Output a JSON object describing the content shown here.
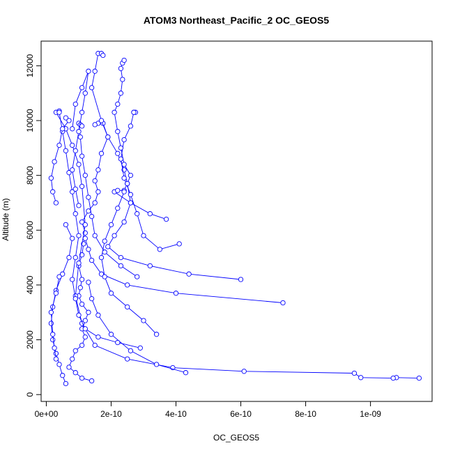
{
  "chart_data": {
    "type": "line",
    "title": "ATOM3 Northeast_Pacific_2 OC_GEOS5",
    "xlabel": "OC_GEOS5",
    "ylabel": "Altitude (m)",
    "xlim": [
      -1.6e-11,
      1.19e-09
    ],
    "ylim": [
      -250,
      12900
    ],
    "x_ticks": [
      0,
      2e-10,
      4e-10,
      6e-10,
      8e-10,
      1e-09
    ],
    "x_tick_labels": [
      "0e+00",
      "2e-10",
      "4e-10",
      "6e-10",
      "8e-10",
      "1e-09"
    ],
    "y_ticks": [
      0,
      2000,
      4000,
      6000,
      8000,
      10000,
      12000
    ],
    "y_tick_labels": [
      "0",
      "2000",
      "4000",
      "6000",
      "8000",
      "10000",
      "12000"
    ],
    "grid": false,
    "legend": "none",
    "colors": {
      "series": "#0000ff",
      "axes": "#000000",
      "background": "#ffffff"
    },
    "series": [
      {
        "marker": "open-circle",
        "line": "solid",
        "points": [
          {
            "x": 1.4e-10,
            "y": 500
          },
          {
            "x": 1.1e-10,
            "y": 600
          },
          {
            "x": 9e-11,
            "y": 800
          },
          {
            "x": 7e-11,
            "y": 1000
          },
          {
            "x": 8e-11,
            "y": 1300
          },
          {
            "x": 9e-11,
            "y": 1600
          },
          {
            "x": 1.1e-10,
            "y": 1800
          },
          {
            "x": 1.2e-10,
            "y": 2100
          },
          {
            "x": 1.1e-10,
            "y": 2400
          },
          {
            "x": 1.2e-10,
            "y": 2700
          },
          {
            "x": 1.3e-10,
            "y": 3000
          },
          {
            "x": 1.1e-10,
            "y": 3300
          },
          {
            "x": 1e-10,
            "y": 3600
          },
          {
            "x": 1.05e-10,
            "y": 3900
          },
          {
            "x": 1.1e-10,
            "y": 4200
          },
          {
            "x": 1e-10,
            "y": 4700
          },
          {
            "x": 1.1e-10,
            "y": 5100
          },
          {
            "x": 1.15e-10,
            "y": 5500
          },
          {
            "x": 1.2e-10,
            "y": 5900
          },
          {
            "x": 1.1e-10,
            "y": 6300
          },
          {
            "x": 1.3e-10,
            "y": 6700
          },
          {
            "x": 1.5e-10,
            "y": 7000
          },
          {
            "x": 1.6e-10,
            "y": 7400
          },
          {
            "x": 1.5e-10,
            "y": 7800
          },
          {
            "x": 1.6e-10,
            "y": 8200
          },
          {
            "x": 1.7e-10,
            "y": 8800
          },
          {
            "x": 1.9e-10,
            "y": 9400
          },
          {
            "x": 1.75e-10,
            "y": 9900
          },
          {
            "x": 1.6e-10,
            "y": 9900
          },
          {
            "x": 1.5e-10,
            "y": 9850
          }
        ]
      },
      {
        "marker": "open-circle",
        "line": "solid",
        "points": [
          {
            "x": 1.15e-09,
            "y": 600
          },
          {
            "x": 1.08e-09,
            "y": 620
          },
          {
            "x": 1.07e-09,
            "y": 600
          },
          {
            "x": 9.7e-10,
            "y": 620
          },
          {
            "x": 9.5e-10,
            "y": 780
          },
          {
            "x": 6.1e-10,
            "y": 850
          },
          {
            "x": 3.9e-10,
            "y": 980
          },
          {
            "x": 2.5e-10,
            "y": 1300
          },
          {
            "x": 1.5e-10,
            "y": 1800
          },
          {
            "x": 1.1e-10,
            "y": 2600
          },
          {
            "x": 9e-11,
            "y": 3600
          },
          {
            "x": 1e-10,
            "y": 4800
          },
          {
            "x": 1.2e-10,
            "y": 6200
          },
          {
            "x": 1.1e-10,
            "y": 7600
          },
          {
            "x": 1e-10,
            "y": 8400
          },
          {
            "x": 8e-11,
            "y": 9100
          },
          {
            "x": 6e-11,
            "y": 9700
          },
          {
            "x": 3e-11,
            "y": 10300
          },
          {
            "x": 4e-11,
            "y": 10350
          }
        ]
      },
      {
        "marker": "open-circle",
        "line": "solid",
        "points": [
          {
            "x": 7.3e-10,
            "y": 3350
          },
          {
            "x": 4e-10,
            "y": 3700
          },
          {
            "x": 2.5e-10,
            "y": 4000
          },
          {
            "x": 1.7e-10,
            "y": 4400
          },
          {
            "x": 1.4e-10,
            "y": 4900
          },
          {
            "x": 1.3e-10,
            "y": 5300
          },
          {
            "x": 1.2e-10,
            "y": 5700
          }
        ]
      },
      {
        "marker": "open-circle",
        "line": "solid",
        "points": [
          {
            "x": 6e-10,
            "y": 4200
          },
          {
            "x": 4.4e-10,
            "y": 4400
          },
          {
            "x": 3.2e-10,
            "y": 4700
          },
          {
            "x": 2.3e-10,
            "y": 5000
          },
          {
            "x": 1.9e-10,
            "y": 5400
          },
          {
            "x": 2.1e-10,
            "y": 5800
          },
          {
            "x": 2.4e-10,
            "y": 6300
          },
          {
            "x": 2.6e-10,
            "y": 7000
          },
          {
            "x": 2.5e-10,
            "y": 7700
          },
          {
            "x": 2.4e-10,
            "y": 8200
          },
          {
            "x": 2.2e-10,
            "y": 8800
          },
          {
            "x": 1.9e-10,
            "y": 9400
          },
          {
            "x": 1.7e-10,
            "y": 10000
          },
          {
            "x": 1.4e-10,
            "y": 11200
          },
          {
            "x": 1.5e-10,
            "y": 11800
          },
          {
            "x": 1.6e-10,
            "y": 12450
          },
          {
            "x": 1.7e-10,
            "y": 12450
          },
          {
            "x": 1.75e-10,
            "y": 12380
          }
        ]
      },
      {
        "marker": "open-circle",
        "line": "solid",
        "points": [
          {
            "x": 4.3e-10,
            "y": 800
          },
          {
            "x": 3.4e-10,
            "y": 1100
          },
          {
            "x": 2.6e-10,
            "y": 1600
          },
          {
            "x": 2e-10,
            "y": 2200
          },
          {
            "x": 1.6e-10,
            "y": 2900
          },
          {
            "x": 1.4e-10,
            "y": 3500
          },
          {
            "x": 1.3e-10,
            "y": 4100
          }
        ]
      },
      {
        "marker": "open-circle",
        "line": "solid",
        "points": [
          {
            "x": 4.1e-10,
            "y": 5500
          },
          {
            "x": 3.5e-10,
            "y": 5300
          },
          {
            "x": 3e-10,
            "y": 5800
          },
          {
            "x": 2.8e-10,
            "y": 6600
          },
          {
            "x": 2.6e-10,
            "y": 7300
          },
          {
            "x": 2.4e-10,
            "y": 7900
          },
          {
            "x": 2.3e-10,
            "y": 8600
          },
          {
            "x": 2.4e-10,
            "y": 9300
          },
          {
            "x": 2.6e-10,
            "y": 9800
          },
          {
            "x": 2.7e-10,
            "y": 10300
          },
          {
            "x": 2.75e-10,
            "y": 10300
          },
          {
            "x": 2.7e-10,
            "y": 10300
          }
        ]
      },
      {
        "marker": "open-circle",
        "line": "solid",
        "points": [
          {
            "x": 3.7e-10,
            "y": 6400
          },
          {
            "x": 3.2e-10,
            "y": 6600
          },
          {
            "x": 2.6e-10,
            "y": 7000
          },
          {
            "x": 2.1e-10,
            "y": 7400
          },
          {
            "x": 2.2e-10,
            "y": 7450
          },
          {
            "x": 2.4e-10,
            "y": 7450
          },
          {
            "x": 2.5e-10,
            "y": 7700
          },
          {
            "x": 2.6e-10,
            "y": 8000
          },
          {
            "x": 2.4e-10,
            "y": 8400
          },
          {
            "x": 2.3e-10,
            "y": 9000
          },
          {
            "x": 2.2e-10,
            "y": 9600
          },
          {
            "x": 2.1e-10,
            "y": 10300
          },
          {
            "x": 2.2e-10,
            "y": 10600
          },
          {
            "x": 2.3e-10,
            "y": 11000
          },
          {
            "x": 2.35e-10,
            "y": 11500
          },
          {
            "x": 2.3e-10,
            "y": 11900
          },
          {
            "x": 2.35e-10,
            "y": 12100
          },
          {
            "x": 2.4e-10,
            "y": 12200
          }
        ]
      },
      {
        "marker": "open-circle",
        "line": "solid",
        "points": [
          {
            "x": 3.4e-10,
            "y": 2200
          },
          {
            "x": 3e-10,
            "y": 2700
          },
          {
            "x": 2.5e-10,
            "y": 3200
          },
          {
            "x": 2e-10,
            "y": 3700
          },
          {
            "x": 1.8e-10,
            "y": 4300
          },
          {
            "x": 1.7e-10,
            "y": 5000
          },
          {
            "x": 1.8e-10,
            "y": 5600
          },
          {
            "x": 2e-10,
            "y": 6200
          },
          {
            "x": 2.2e-10,
            "y": 6800
          },
          {
            "x": 2.4e-10,
            "y": 7400
          }
        ]
      },
      {
        "marker": "open-circle",
        "line": "solid",
        "points": [
          {
            "x": 2.9e-10,
            "y": 1700
          },
          {
            "x": 2.2e-10,
            "y": 1900
          },
          {
            "x": 1.6e-10,
            "y": 2100
          },
          {
            "x": 1.2e-10,
            "y": 2400
          },
          {
            "x": 1e-10,
            "y": 2900
          },
          {
            "x": 9e-11,
            "y": 3500
          },
          {
            "x": 8e-11,
            "y": 4200
          },
          {
            "x": 9e-11,
            "y": 5000
          },
          {
            "x": 1e-10,
            "y": 5800
          },
          {
            "x": 9e-11,
            "y": 6600
          },
          {
            "x": 8e-11,
            "y": 7400
          },
          {
            "x": 7e-11,
            "y": 8100
          },
          {
            "x": 6e-11,
            "y": 8900
          },
          {
            "x": 5e-11,
            "y": 9600
          },
          {
            "x": 4e-11,
            "y": 10300
          }
        ]
      },
      {
        "marker": "open-circle",
        "line": "solid",
        "points": [
          {
            "x": 2.8e-10,
            "y": 4300
          },
          {
            "x": 2.3e-10,
            "y": 4700
          },
          {
            "x": 1.8e-10,
            "y": 5200
          },
          {
            "x": 1.5e-10,
            "y": 5800
          },
          {
            "x": 1.4e-10,
            "y": 6500
          },
          {
            "x": 1.3e-10,
            "y": 7200
          },
          {
            "x": 1.2e-10,
            "y": 8000
          },
          {
            "x": 1.1e-10,
            "y": 8700
          },
          {
            "x": 1.05e-10,
            "y": 9400
          },
          {
            "x": 1e-10,
            "y": 9900
          },
          {
            "x": 1.05e-10,
            "y": 9850
          },
          {
            "x": 1.1e-10,
            "y": 9800
          }
        ]
      },
      {
        "marker": "open-circle",
        "line": "solid",
        "points": [
          {
            "x": 6e-11,
            "y": 400
          },
          {
            "x": 5e-11,
            "y": 700
          },
          {
            "x": 4e-11,
            "y": 1100
          },
          {
            "x": 3e-11,
            "y": 1500
          },
          {
            "x": 2e-11,
            "y": 2000
          },
          {
            "x": 1.5e-11,
            "y": 2600
          },
          {
            "x": 2e-11,
            "y": 3200
          },
          {
            "x": 3e-11,
            "y": 3800
          },
          {
            "x": 5e-11,
            "y": 4400
          },
          {
            "x": 7e-11,
            "y": 5000
          },
          {
            "x": 8e-11,
            "y": 5700
          },
          {
            "x": 6e-11,
            "y": 6200
          }
        ]
      },
      {
        "marker": "open-circle",
        "line": "solid",
        "points": [
          {
            "x": 3e-11,
            "y": 1300
          },
          {
            "x": 2.5e-11,
            "y": 1700
          },
          {
            "x": 2e-11,
            "y": 2200
          },
          {
            "x": 1.5e-11,
            "y": 3000
          },
          {
            "x": 3e-11,
            "y": 3700
          },
          {
            "x": 4e-11,
            "y": 4300
          }
        ]
      },
      {
        "marker": "open-circle",
        "line": "solid",
        "points": [
          {
            "x": 3e-11,
            "y": 7000
          },
          {
            "x": 2e-11,
            "y": 7400
          },
          {
            "x": 1.5e-11,
            "y": 7900
          },
          {
            "x": 2.5e-11,
            "y": 8500
          },
          {
            "x": 4e-11,
            "y": 9100
          },
          {
            "x": 5e-11,
            "y": 9700
          },
          {
            "x": 7e-11,
            "y": 10000
          },
          {
            "x": 6e-11,
            "y": 10100
          }
        ]
      },
      {
        "marker": "open-circle",
        "line": "solid",
        "points": [
          {
            "x": 8e-11,
            "y": 9700
          },
          {
            "x": 9e-11,
            "y": 10600
          },
          {
            "x": 1.1e-10,
            "y": 11200
          },
          {
            "x": 1.3e-10,
            "y": 11800
          },
          {
            "x": 1.2e-10,
            "y": 11000
          },
          {
            "x": 1.1e-10,
            "y": 10300
          },
          {
            "x": 1e-10,
            "y": 9600
          },
          {
            "x": 9e-11,
            "y": 8900
          },
          {
            "x": 8e-11,
            "y": 8200
          },
          {
            "x": 9e-11,
            "y": 7500
          },
          {
            "x": 1e-10,
            "y": 6900
          }
        ]
      }
    ]
  }
}
